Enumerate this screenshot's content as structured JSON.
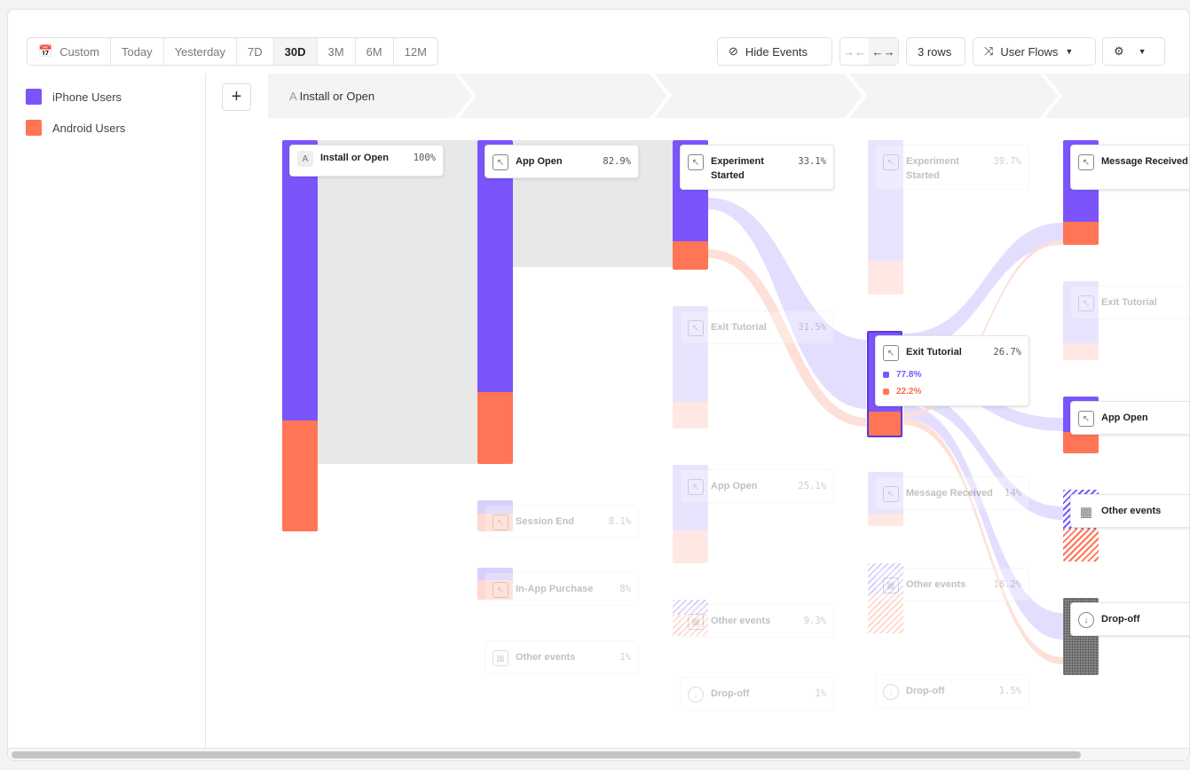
{
  "toolbar": {
    "date_ranges": [
      "Custom",
      "Today",
      "Yesterday",
      "7D",
      "30D",
      "3M",
      "6M",
      "12M"
    ],
    "selected_range": "30D",
    "hide_events": "Hide Events",
    "rows": "3 rows",
    "view": "User Flows"
  },
  "legend": [
    {
      "label": "iPhone Users",
      "color": "#7b55fb"
    },
    {
      "label": "Android Users",
      "color": "#ff7555"
    }
  ],
  "steps": {
    "first_letter": "A",
    "first_label": "Install or Open"
  },
  "nodes": {
    "c1": [
      {
        "label": "Install or Open",
        "pct": "100%",
        "icon": "A"
      }
    ],
    "c2": [
      {
        "label": "App Open",
        "pct": "82.9%"
      },
      {
        "label": "Session End",
        "pct": "8.1%"
      },
      {
        "label": "In-App Purchase",
        "pct": "8%"
      },
      {
        "label": "Other events",
        "pct": "1%"
      }
    ],
    "c3": [
      {
        "label": "Experiment Started",
        "pct": "33.1%"
      },
      {
        "label": "Exit Tutorial",
        "pct": "31.5%"
      },
      {
        "label": "App Open",
        "pct": "25.1%"
      },
      {
        "label": "Other events",
        "pct": "9.3%"
      },
      {
        "label": "Drop-off",
        "pct": "1%"
      }
    ],
    "c4": [
      {
        "label": "Experiment Started",
        "pct": "39.7%"
      },
      {
        "label": "Exit Tutorial",
        "pct": "26.7%",
        "iphone": "77.8%",
        "android": "22.2%"
      },
      {
        "label": "Message Received",
        "pct": "14%"
      },
      {
        "label": "Other events",
        "pct": "18.2%"
      },
      {
        "label": "Drop-off",
        "pct": "1.5%"
      }
    ],
    "c5": [
      {
        "label": "Message Received"
      },
      {
        "label": "Exit Tutorial"
      },
      {
        "label": "App Open"
      },
      {
        "label": "Other events"
      },
      {
        "label": "Drop-off"
      }
    ]
  }
}
